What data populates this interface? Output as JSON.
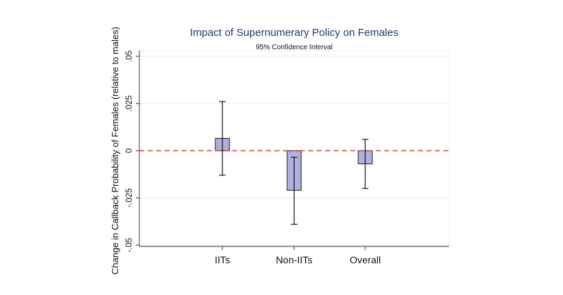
{
  "chart_data": {
    "type": "bar",
    "title": "Impact of Supernumerary Policy on Females",
    "subtitle": "95% Confidence Interval",
    "xlabel": "",
    "ylabel": "Change in Callback Probability of Females (relative to males)",
    "categories": [
      "IITs",
      "Non-IITs",
      "Overall"
    ],
    "values": [
      0.0065,
      -0.021,
      -0.007
    ],
    "ci_lower": [
      -0.013,
      -0.039,
      -0.02
    ],
    "ci_upper": [
      0.026,
      -0.0035,
      0.006
    ],
    "ylim": [
      -0.05,
      0.05
    ],
    "yticks": [
      0.05,
      0.025,
      0,
      -0.025,
      -0.05
    ],
    "ytick_labels": [
      ".05",
      ".025",
      "0",
      "-.025",
      "-.05"
    ],
    "reference_line": 0,
    "grid": true,
    "colors": {
      "bar_fill": "#b1aee0",
      "bar_stroke": "#1a1a1a",
      "reference_line": "#d9443a",
      "title": "#1e3a6e",
      "grid": "#e8e8e8",
      "axis": "#333333"
    }
  }
}
